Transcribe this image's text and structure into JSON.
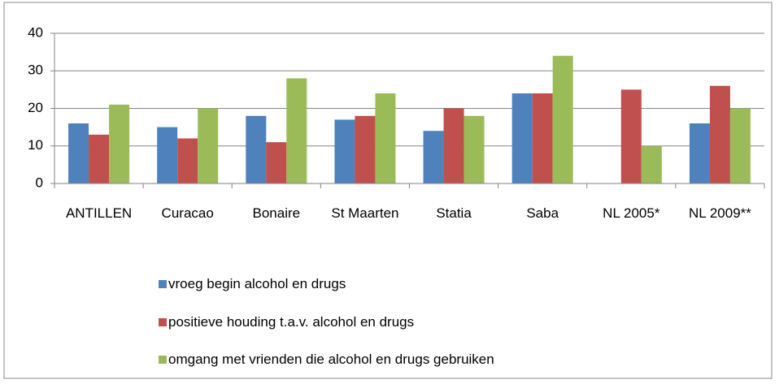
{
  "chart_data": {
    "type": "bar",
    "categories": [
      "ANTILLEN",
      "Curacao",
      "Bonaire",
      "St Maarten",
      "Statia",
      "Saba",
      "NL 2005*",
      "NL 2009**"
    ],
    "series": [
      {
        "name": "vroeg begin alcohol en drugs",
        "color": "#4f81bd",
        "values": [
          16,
          15,
          18,
          17,
          14,
          24,
          null,
          16
        ]
      },
      {
        "name": "positieve houding t.a.v. alcohol en drugs",
        "color": "#c0504d",
        "values": [
          13,
          12,
          11,
          18,
          20,
          24,
          25,
          26
        ]
      },
      {
        "name": "omgang met vrienden die alcohol en drugs gebruiken",
        "color": "#9bbb59",
        "values": [
          21,
          20,
          28,
          24,
          18,
          34,
          10,
          20
        ]
      }
    ],
    "ylim": [
      0,
      40
    ],
    "yticks": [
      0,
      10,
      20,
      30,
      40
    ],
    "grid": true,
    "legend": "bottom"
  }
}
